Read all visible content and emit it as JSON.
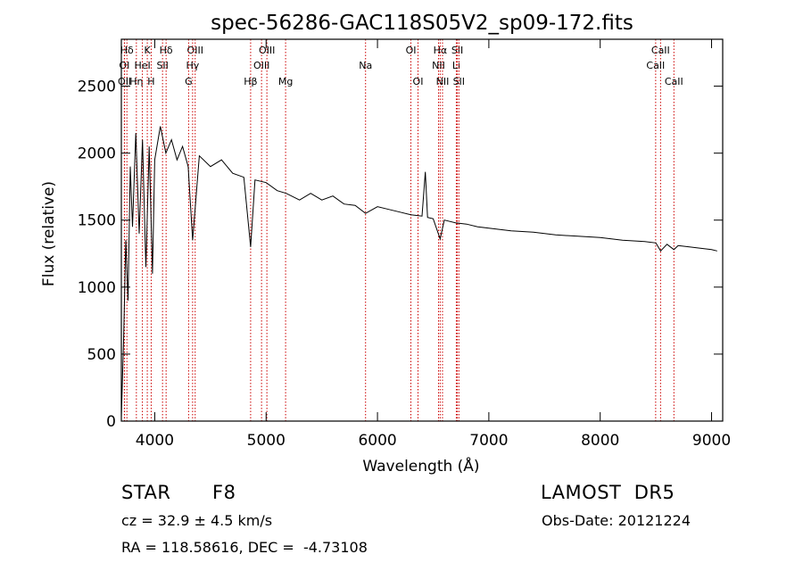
{
  "chart_data": {
    "type": "line",
    "title": "spec-56286-GAC118S05V2_sp09-172.fits",
    "xlabel": "Wavelength (Å)",
    "ylabel": "Flux (relative)",
    "xlim": [
      3700,
      9100
    ],
    "ylim": [
      0,
      2850
    ],
    "x_ticks": [
      4000,
      5000,
      6000,
      7000,
      8000,
      9000
    ],
    "y_ticks": [
      0,
      500,
      1000,
      1500,
      2000,
      2500
    ],
    "grid": false,
    "line_color": "#000000",
    "marker_color": "#cc0000",
    "series": [
      {
        "x": [
          3700,
          3720,
          3740,
          3760,
          3780,
          3800,
          3830,
          3860,
          3890,
          3920,
          3950,
          3980,
          4000,
          4050,
          4100,
          4150,
          4200,
          4250,
          4300,
          4340,
          4400,
          4500,
          4600,
          4700,
          4800,
          4861,
          4900,
          5000,
          5100,
          5180,
          5300,
          5400,
          5500,
          5600,
          5700,
          5800,
          5893,
          6000,
          6100,
          6200,
          6300,
          6400,
          6430,
          6450,
          6500,
          6563,
          6600,
          6700,
          6800,
          6900,
          7000,
          7200,
          7400,
          7600,
          7800,
          8000,
          8200,
          8400,
          8500,
          8542,
          8600,
          8662,
          8700,
          8800,
          8900,
          9000,
          9050
        ],
        "y": [
          30,
          600,
          1350,
          900,
          1900,
          1450,
          2150,
          1400,
          2100,
          1150,
          2050,
          1100,
          1950,
          2200,
          2000,
          2100,
          1950,
          2050,
          1900,
          1350,
          1980,
          1900,
          1950,
          1850,
          1820,
          1300,
          1800,
          1780,
          1720,
          1700,
          1650,
          1700,
          1650,
          1680,
          1620,
          1610,
          1550,
          1600,
          1580,
          1560,
          1540,
          1530,
          1860,
          1520,
          1510,
          1360,
          1500,
          1480,
          1470,
          1450,
          1440,
          1420,
          1410,
          1390,
          1380,
          1370,
          1350,
          1340,
          1330,
          1270,
          1320,
          1280,
          1310,
          1300,
          1290,
          1280,
          1270
        ]
      }
    ],
    "lines": [
      {
        "label": "Hδ",
        "wl": 3750,
        "row": 0
      },
      {
        "label": "OI",
        "wl": 3727,
        "row": 1
      },
      {
        "label": "OII",
        "wl": 3729,
        "row": 2
      },
      {
        "label": "Hη",
        "wl": 3835,
        "row": 2
      },
      {
        "label": "HeI",
        "wl": 3889,
        "row": 1
      },
      {
        "label": "K",
        "wl": 3933,
        "row": 0
      },
      {
        "label": "H",
        "wl": 3968,
        "row": 2
      },
      {
        "label": "Hδ",
        "wl": 4102,
        "row": 0
      },
      {
        "label": "SII",
        "wl": 4070,
        "row": 1
      },
      {
        "label": "OIII",
        "wl": 4363,
        "row": 0
      },
      {
        "label": "Hγ",
        "wl": 4340,
        "row": 1
      },
      {
        "label": "G",
        "wl": 4304,
        "row": 2
      },
      {
        "label": "Hβ",
        "wl": 4861,
        "row": 2
      },
      {
        "label": "OIII",
        "wl": 5007,
        "row": 0
      },
      {
        "label": "OIII",
        "wl": 4959,
        "row": 1
      },
      {
        "label": "Mg",
        "wl": 5175,
        "row": 2
      },
      {
        "label": "Na",
        "wl": 5893,
        "row": 1
      },
      {
        "label": "OI",
        "wl": 6300,
        "row": 0
      },
      {
        "label": "OI",
        "wl": 6364,
        "row": 2
      },
      {
        "label": "Hα",
        "wl": 6563,
        "row": 0
      },
      {
        "label": "NII",
        "wl": 6548,
        "row": 1
      },
      {
        "label": "NII",
        "wl": 6584,
        "row": 2
      },
      {
        "label": "SII",
        "wl": 6717,
        "row": 0
      },
      {
        "label": "Li",
        "wl": 6708,
        "row": 1
      },
      {
        "label": "SII",
        "wl": 6731,
        "row": 2
      },
      {
        "label": "CaII",
        "wl": 8542,
        "row": 0
      },
      {
        "label": "CaII",
        "wl": 8498,
        "row": 1
      },
      {
        "label": "CaII",
        "wl": 8662,
        "row": 2
      }
    ]
  },
  "info": {
    "object_type": "STAR",
    "subclass": "F8",
    "survey": "LAMOST  DR5",
    "cz": "cz = 32.9 ± 4.5 km/s",
    "obs_date": "Obs-Date: 20121224",
    "coords": "RA = 118.58616, DEC =  -4.73108"
  }
}
